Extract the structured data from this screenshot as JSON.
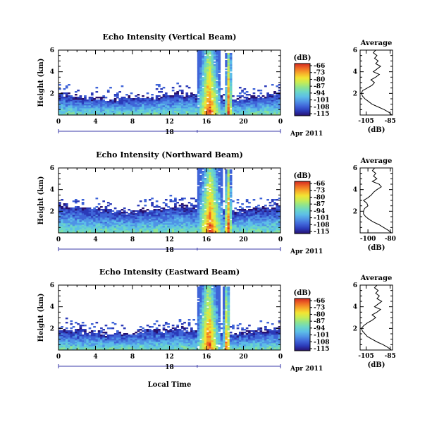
{
  "figure": {
    "xlabel": "Local Time",
    "ylabel": "Height (km)",
    "date_label": "Apr 2011",
    "day_label": "18",
    "colorbar_unit": "(dB)",
    "colormap": [
      "#27106e",
      "#2b3ab8",
      "#3f64d8",
      "#4f93e6",
      "#5dbee7",
      "#6bd6c8",
      "#8fe48e",
      "#c6ec55",
      "#f3e432",
      "#f7aa2a",
      "#ef6a24",
      "#d42a22"
    ]
  },
  "chart_data": [
    {
      "type": "heatmap",
      "title": "Echo Intensity (Vertical Beam)",
      "xlabel": "",
      "ylabel": "Height (km)",
      "x_ticks": [
        "0",
        "4",
        "8",
        "12",
        "16",
        "20",
        "0"
      ],
      "y_ticks": [
        "2",
        "4",
        "6"
      ],
      "xlim": [
        0,
        24
      ],
      "ylim": [
        0,
        6
      ],
      "colorbar": {
        "label": "(dB)",
        "ticks": [
          "-66",
          "-73",
          "-80",
          "-87",
          "-94",
          "-101",
          "-108",
          "-115"
        ]
      },
      "rain_bands": [
        [
          15.0,
          17.6,
          6.0
        ],
        [
          18.0,
          18.8,
          5.8
        ]
      ],
      "base_echo_top_km": [
        2.0,
        1.9,
        1.7,
        1.6,
        1.6,
        1.5,
        1.5,
        1.6,
        1.6,
        1.7,
        1.7,
        1.8,
        1.9,
        2.0,
        1.9,
        1.8,
        1.8,
        1.7,
        1.6,
        1.5,
        1.6,
        1.7,
        1.8,
        2.0,
        2.1
      ]
    },
    {
      "type": "line",
      "title": "Average",
      "xlabel": "(dB)",
      "ylabel": "",
      "x_ticks": [
        "-105",
        "-85"
      ],
      "y_ticks": [
        "2",
        "4",
        "6"
      ],
      "xlim": [
        -110,
        -83
      ],
      "ylim": [
        0,
        6
      ],
      "series": [
        {
          "x": [
            -83.5,
            -86,
            -90,
            -95,
            -100,
            -103,
            -106,
            -108,
            -109,
            -108,
            -104,
            -100,
            -98,
            -101,
            -97,
            -94,
            -99,
            -96,
            -93,
            -97,
            -95,
            -98,
            -96,
            -99,
            -97
          ],
          "y": [
            0.0,
            0.25,
            0.5,
            0.75,
            1.0,
            1.25,
            1.5,
            1.75,
            2.0,
            2.25,
            2.5,
            2.75,
            3.0,
            3.25,
            3.5,
            3.75,
            4.0,
            4.25,
            4.5,
            4.75,
            5.0,
            5.25,
            5.5,
            5.75,
            6.0
          ]
        }
      ]
    },
    {
      "type": "heatmap",
      "title": "Echo Intensity (Northward Beam)",
      "xlabel": "",
      "ylabel": "Height (km)",
      "x_ticks": [
        "0",
        "4",
        "8",
        "12",
        "16",
        "20",
        "0"
      ],
      "y_ticks": [
        "2",
        "4",
        "6"
      ],
      "xlim": [
        0,
        24
      ],
      "ylim": [
        0,
        6
      ],
      "colorbar": {
        "label": "(dB)",
        "ticks": [
          "-66",
          "-73",
          "-80",
          "-87",
          "-94",
          "-101",
          "-108",
          "-115"
        ]
      },
      "rain_bands": [
        [
          15.0,
          17.8,
          6.0
        ],
        [
          17.9,
          18.8,
          5.9
        ]
      ],
      "base_echo_top_km": [
        2.6,
        2.5,
        2.4,
        2.3,
        2.3,
        2.2,
        2.1,
        2.0,
        2.0,
        2.1,
        2.2,
        2.3,
        2.4,
        2.5,
        2.4,
        2.4,
        2.3,
        2.2,
        2.1,
        2.0,
        2.1,
        2.2,
        2.3,
        2.4,
        2.5
      ]
    },
    {
      "type": "line",
      "title": "Average",
      "xlabel": "(dB)",
      "ylabel": "",
      "x_ticks": [
        "-100",
        "-80"
      ],
      "y_ticks": [
        "2",
        "4",
        "6"
      ],
      "xlim": [
        -107,
        -78
      ],
      "ylim": [
        0,
        6
      ],
      "series": [
        {
          "x": [
            -79,
            -82,
            -86,
            -90,
            -95,
            -99,
            -102,
            -104,
            -104,
            -103,
            -100,
            -101,
            -104,
            -100,
            -97,
            -95,
            -92,
            -88,
            -90,
            -96,
            -92,
            -95,
            -93,
            -96,
            -94
          ],
          "y": [
            0.0,
            0.25,
            0.5,
            0.75,
            1.0,
            1.25,
            1.5,
            1.75,
            2.0,
            2.25,
            2.5,
            2.75,
            3.0,
            3.25,
            3.5,
            3.75,
            4.0,
            4.25,
            4.5,
            4.75,
            5.0,
            5.25,
            5.5,
            5.75,
            6.0
          ]
        }
      ]
    },
    {
      "type": "heatmap",
      "title": "Echo Intensity (Eastward Beam)",
      "xlabel": "Local Time",
      "ylabel": "Height (km)",
      "x_ticks": [
        "0",
        "4",
        "8",
        "12",
        "16",
        "20",
        "0"
      ],
      "y_ticks": [
        "2",
        "4",
        "6"
      ],
      "xlim": [
        0,
        24
      ],
      "ylim": [
        0,
        6
      ],
      "colorbar": {
        "label": "(dB)",
        "ticks": [
          "-66",
          "-73",
          "-80",
          "-87",
          "-94",
          "-101",
          "-108",
          "-115"
        ]
      },
      "rain_bands": [
        [
          15.0,
          17.5,
          6.0
        ],
        [
          17.8,
          18.6,
          5.9
        ]
      ],
      "base_echo_top_km": [
        2.0,
        1.9,
        1.8,
        1.7,
        1.6,
        1.5,
        1.5,
        1.6,
        1.6,
        1.7,
        1.8,
        1.8,
        1.9,
        2.0,
        1.9,
        1.8,
        1.7,
        1.7,
        1.6,
        1.5,
        1.6,
        1.7,
        1.8,
        1.9,
        2.0
      ]
    },
    {
      "type": "line",
      "title": "Average",
      "xlabel": "(dB)",
      "ylabel": "",
      "x_ticks": [
        "-105",
        "-85"
      ],
      "y_ticks": [
        "2",
        "4",
        "6"
      ],
      "xlim": [
        -110,
        -83
      ],
      "ylim": [
        0,
        6
      ],
      "series": [
        {
          "x": [
            -84,
            -87,
            -91,
            -96,
            -100,
            -104,
            -106,
            -108,
            -109,
            -107,
            -104,
            -100,
            -97,
            -100,
            -96,
            -93,
            -98,
            -95,
            -92,
            -96,
            -94,
            -97,
            -95,
            -98,
            -96
          ],
          "y": [
            0.0,
            0.25,
            0.5,
            0.75,
            1.0,
            1.25,
            1.5,
            1.75,
            2.0,
            2.25,
            2.5,
            2.75,
            3.0,
            3.25,
            3.5,
            3.75,
            4.0,
            4.25,
            4.5,
            4.75,
            5.0,
            5.25,
            5.5,
            5.75,
            6.0
          ]
        }
      ]
    }
  ]
}
